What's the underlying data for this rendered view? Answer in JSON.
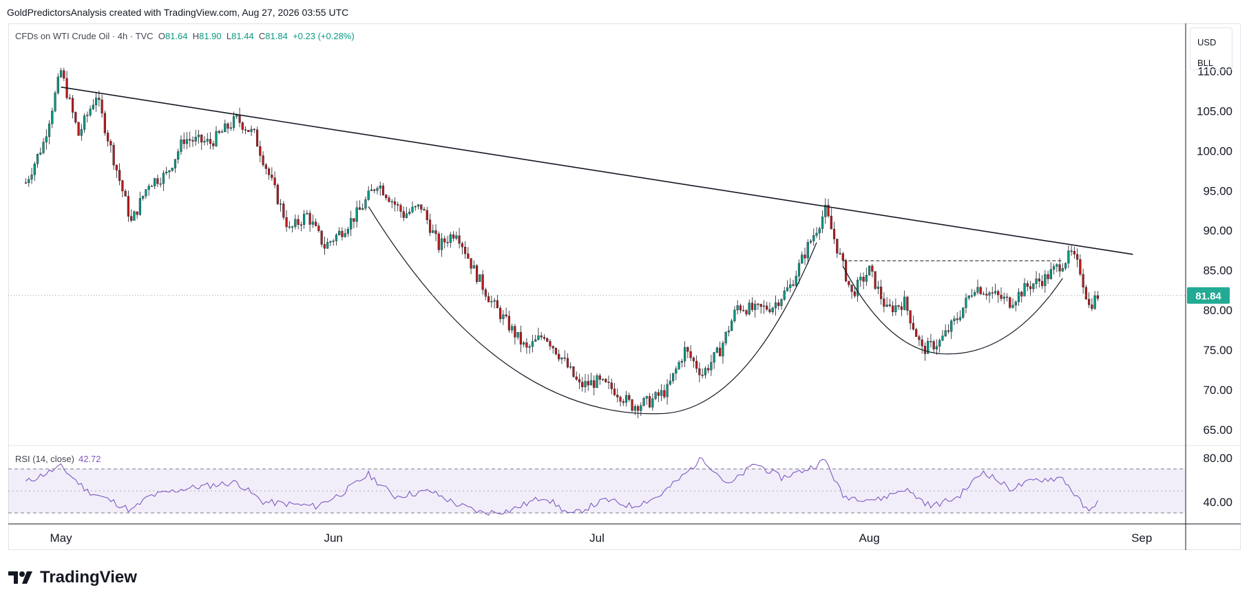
{
  "header": {
    "text": "GoldPredictorsAnalysis created with TradingView.com, Aug 27, 2026 03:55 UTC"
  },
  "legend": {
    "symbol": "CFDs on WTI Crude Oil · 4h · TVC",
    "o_label": "O",
    "o": "81.64",
    "h_label": "H",
    "h": "81.90",
    "l_label": "L",
    "l": "81.44",
    "c_label": "C",
    "c": "81.84",
    "change": "+0.23 (+0.28%)"
  },
  "currency": {
    "top": "USD",
    "bottom": "BLL"
  },
  "rsi_legend": {
    "label": "RSI (14, close)",
    "value": "42.72"
  },
  "logo": {
    "text": "TradingView"
  },
  "colors": {
    "up": "#089981",
    "down": "#b71c1c",
    "rsi": "#7e57c2",
    "price_badge": "#22ab94"
  },
  "chart_data": {
    "type": "candlestick",
    "timeframe": "4h",
    "x_ticks": [
      "May",
      "Jun",
      "Jul",
      "Aug",
      "Sep"
    ],
    "x_tick_dates": [
      "2026-05-01",
      "2026-06-01",
      "2026-07-01",
      "2026-08-01",
      "2026-09-01"
    ],
    "y_ticks": [
      "110.00",
      "105.00",
      "100.00",
      "95.00",
      "90.00",
      "85.00",
      "80.00",
      "75.00",
      "70.00",
      "65.00"
    ],
    "ylim": [
      63,
      116
    ],
    "last_price": "81.84",
    "price_path": [
      [
        "2026-04-27",
        96
      ],
      [
        "2026-04-29",
        101
      ],
      [
        "2026-05-01",
        110
      ],
      [
        "2026-05-03",
        102
      ],
      [
        "2026-05-05",
        107
      ],
      [
        "2026-05-07",
        99
      ],
      [
        "2026-05-09",
        91
      ],
      [
        "2026-05-11",
        96
      ],
      [
        "2026-05-13",
        97
      ],
      [
        "2026-05-15",
        101.5
      ],
      [
        "2026-05-18",
        101
      ],
      [
        "2026-05-21",
        104
      ],
      [
        "2026-05-23",
        102
      ],
      [
        "2026-05-25",
        96
      ],
      [
        "2026-05-27",
        90
      ],
      [
        "2026-05-29",
        92
      ],
      [
        "2026-05-31",
        88
      ],
      [
        "2026-06-02",
        90
      ],
      [
        "2026-06-04",
        92.5
      ],
      [
        "2026-06-06",
        96
      ],
      [
        "2026-06-09",
        92
      ],
      [
        "2026-06-11",
        93
      ],
      [
        "2026-06-13",
        88
      ],
      [
        "2026-06-15",
        90
      ],
      [
        "2026-06-17",
        85
      ],
      [
        "2026-06-19",
        81
      ],
      [
        "2026-06-21",
        78
      ],
      [
        "2026-06-23",
        75
      ],
      [
        "2026-06-25",
        77
      ],
      [
        "2026-06-27",
        74
      ],
      [
        "2026-06-29",
        70.5
      ],
      [
        "2026-07-01",
        71
      ],
      [
        "2026-07-03",
        70
      ],
      [
        "2026-07-05",
        68
      ],
      [
        "2026-07-07",
        68.5
      ],
      [
        "2026-07-09",
        70
      ],
      [
        "2026-07-11",
        75
      ],
      [
        "2026-07-13",
        72
      ],
      [
        "2026-07-15",
        75
      ],
      [
        "2026-07-17",
        80.5
      ],
      [
        "2026-07-19",
        80
      ],
      [
        "2026-07-21",
        80.5
      ],
      [
        "2026-07-23",
        83
      ],
      [
        "2026-07-25",
        88
      ],
      [
        "2026-07-27",
        92.5
      ],
      [
        "2026-07-28",
        89
      ],
      [
        "2026-07-30",
        82
      ],
      [
        "2026-08-01",
        85
      ],
      [
        "2026-08-03",
        80
      ],
      [
        "2026-08-05",
        81
      ],
      [
        "2026-08-07",
        75
      ],
      [
        "2026-08-09",
        76
      ],
      [
        "2026-08-11",
        79
      ],
      [
        "2026-08-13",
        83
      ],
      [
        "2026-08-15",
        82
      ],
      [
        "2026-08-17",
        81
      ],
      [
        "2026-08-19",
        83
      ],
      [
        "2026-08-21",
        84
      ],
      [
        "2026-08-23",
        86
      ],
      [
        "2026-08-24",
        87
      ],
      [
        "2026-08-25",
        85
      ],
      [
        "2026-08-26",
        80.5
      ],
      [
        "2026-08-27",
        81.84
      ]
    ],
    "trendline": [
      [
        "2026-05-01",
        108
      ],
      [
        "2026-08-31",
        87
      ]
    ],
    "cup_left_arc": {
      "start": [
        "2026-06-05",
        93
      ],
      "bottom": [
        "2026-07-08",
        67
      ],
      "end": [
        "2026-07-26",
        88.5
      ]
    },
    "cup_right_arc": {
      "start": [
        "2026-07-29",
        85.5
      ],
      "bottom": [
        "2026-08-10",
        74.5
      ],
      "end": [
        "2026-08-23",
        84
      ]
    },
    "neckline": [
      [
        "2026-07-29",
        86.2
      ],
      [
        "2026-08-23",
        86.2
      ]
    ],
    "rsi": {
      "ylim": [
        20,
        90
      ],
      "y_ticks": [
        "80.00",
        "40.00"
      ],
      "bands": [
        30,
        70
      ],
      "path": [
        [
          "2026-04-27",
          58
        ],
        [
          "2026-05-01",
          72
        ],
        [
          "2026-05-04",
          50
        ],
        [
          "2026-05-07",
          40
        ],
        [
          "2026-05-09",
          32
        ],
        [
          "2026-05-11",
          45
        ],
        [
          "2026-05-15",
          52
        ],
        [
          "2026-05-18",
          55
        ],
        [
          "2026-05-21",
          58
        ],
        [
          "2026-05-24",
          40
        ],
        [
          "2026-05-27",
          38
        ],
        [
          "2026-05-30",
          36
        ],
        [
          "2026-06-02",
          48
        ],
        [
          "2026-06-05",
          65
        ],
        [
          "2026-06-08",
          45
        ],
        [
          "2026-06-12",
          50
        ],
        [
          "2026-06-15",
          38
        ],
        [
          "2026-06-18",
          30
        ],
        [
          "2026-06-21",
          32
        ],
        [
          "2026-06-25",
          45
        ],
        [
          "2026-06-28",
          28
        ],
        [
          "2026-07-02",
          42
        ],
        [
          "2026-07-05",
          36
        ],
        [
          "2026-07-08",
          45
        ],
        [
          "2026-07-11",
          65
        ],
        [
          "2026-07-13",
          80
        ],
        [
          "2026-07-16",
          55
        ],
        [
          "2026-07-19",
          75
        ],
        [
          "2026-07-22",
          62
        ],
        [
          "2026-07-25",
          70
        ],
        [
          "2026-07-27",
          78
        ],
        [
          "2026-07-29",
          45
        ],
        [
          "2026-08-02",
          42
        ],
        [
          "2026-08-05",
          52
        ],
        [
          "2026-08-08",
          36
        ],
        [
          "2026-08-11",
          44
        ],
        [
          "2026-08-14",
          68
        ],
        [
          "2026-08-17",
          52
        ],
        [
          "2026-08-20",
          60
        ],
        [
          "2026-08-23",
          62
        ],
        [
          "2026-08-25",
          40
        ],
        [
          "2026-08-26",
          30
        ],
        [
          "2026-08-27",
          42.72
        ]
      ]
    }
  }
}
